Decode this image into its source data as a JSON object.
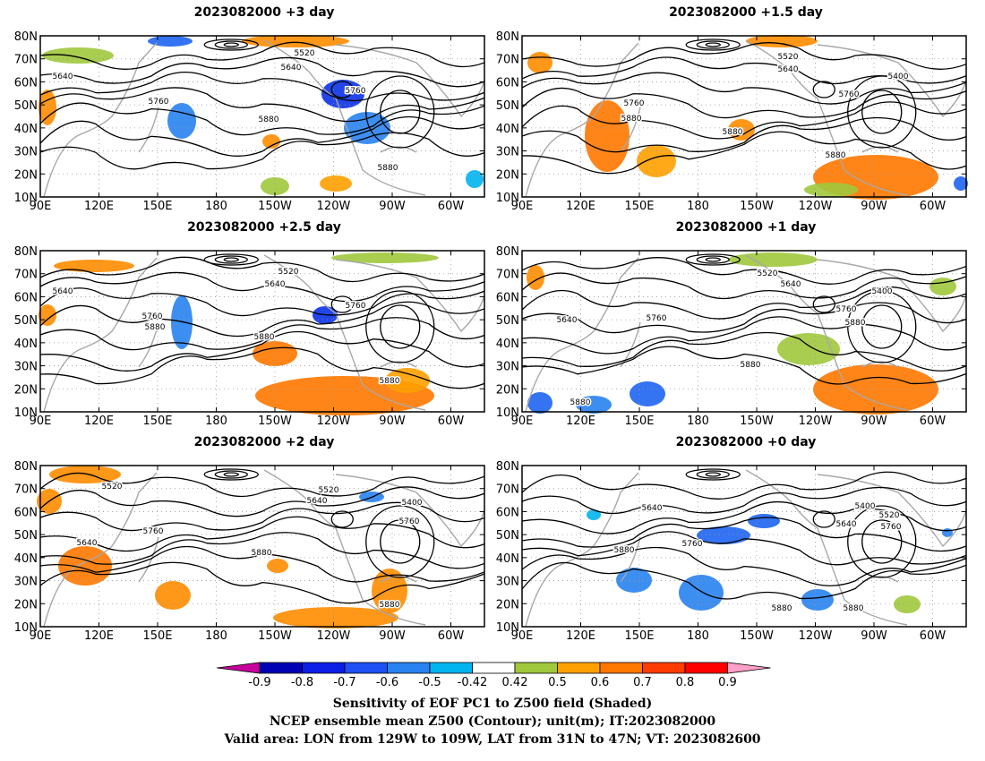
{
  "panels": [
    {
      "title": "2023082000 +3 day",
      "contour_labels": [
        "5520",
        "5640",
        "5640",
        "5760",
        "5760",
        "5880",
        "5880"
      ]
    },
    {
      "title": "2023082000 +1.5 day",
      "contour_labels": [
        "5520",
        "5640",
        "5400",
        "5760",
        "5760",
        "5880",
        "5880",
        "5880"
      ]
    },
    {
      "title": "2023082000 +2.5 day",
      "contour_labels": [
        "5520",
        "5640",
        "5640",
        "5760",
        "5760",
        "5880",
        "5880",
        "5880"
      ]
    },
    {
      "title": "2023082000 +1 day",
      "contour_labels": [
        "5520",
        "5640",
        "5640",
        "5400",
        "5760",
        "5760",
        "5880",
        "5880",
        "5880"
      ]
    },
    {
      "title": "2023082000 +2 day",
      "contour_labels": [
        "5520",
        "5520",
        "5640",
        "5400",
        "5640",
        "5760",
        "5760",
        "5880",
        "5880"
      ]
    },
    {
      "title": "2023082000 +0 day",
      "contour_labels": [
        "5640",
        "5760",
        "5880",
        "5400",
        "5520",
        "5640",
        "5760",
        "5880",
        "5880"
      ]
    }
  ],
  "map": {
    "lat_labels": [
      "80N",
      "70N",
      "60N",
      "50N",
      "40N",
      "30N",
      "20N",
      "10N"
    ],
    "lon_labels": [
      "90E",
      "120E",
      "150E",
      "180",
      "150W",
      "120W",
      "90W",
      "60W"
    ]
  },
  "colorbar": {
    "ticks": [
      "-0.9",
      "-0.8",
      "-0.7",
      "-0.6",
      "-0.5",
      "-0.42",
      "0.42",
      "0.5",
      "0.6",
      "0.7",
      "0.8",
      "0.9"
    ],
    "colors": [
      "#c8009c",
      "#0000b4",
      "#0a1ee6",
      "#1e50f5",
      "#2882f0",
      "#00b4f0",
      "#ffffff",
      "#a0c83c",
      "#ffa000",
      "#ff7800",
      "#ff3c00",
      "#ff0000",
      "#ffa0c8"
    ]
  },
  "footer": {
    "line1": "Sensitivity of EOF PC1 to Z500 field (Shaded)",
    "line2": "NCEP ensemble mean Z500 (Contour); unit(m); IT:2023082000",
    "line3": "Valid area: LON from 129W to 109W, LAT from 31N to 47N; VT: 2023082600"
  }
}
